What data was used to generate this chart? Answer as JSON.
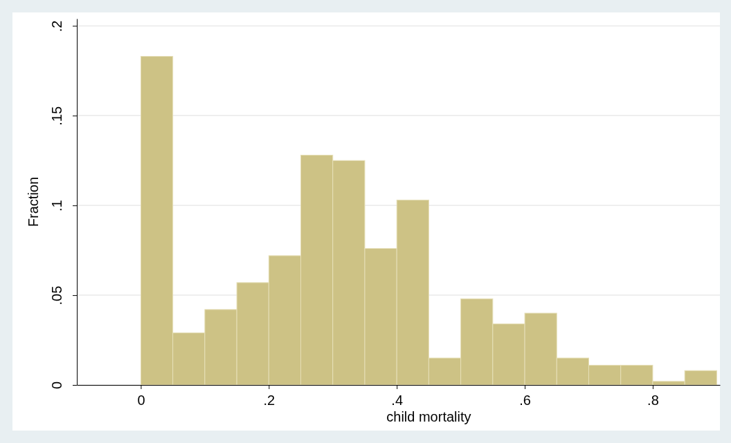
{
  "chart_data": {
    "type": "histogram",
    "xlabel": "child mortality",
    "ylabel": "Fraction",
    "bins": [
      0,
      0.05,
      0.1,
      0.15,
      0.2,
      0.25,
      0.3,
      0.35,
      0.4,
      0.45,
      0.5,
      0.55,
      0.6,
      0.65,
      0.7,
      0.75,
      0.8,
      0.85,
      0.9
    ],
    "values": [
      0.183,
      0.029,
      0.042,
      0.057,
      0.072,
      0.128,
      0.125,
      0.076,
      0.103,
      0.015,
      0.048,
      0.034,
      0.04,
      0.015,
      0.011,
      0.011,
      0.002,
      0.008
    ],
    "color": "#cdc285",
    "xlim": [
      -0.1,
      0.905
    ],
    "xticks": [
      {
        "value": 0,
        "label": "0"
      },
      {
        "value": 0.2,
        "label": ".2"
      },
      {
        "value": 0.4,
        "label": ".4"
      },
      {
        "value": 0.6,
        "label": ".6"
      },
      {
        "value": 0.8,
        "label": ".8"
      }
    ],
    "ylim": [
      0,
      0.204
    ],
    "yticks": [
      {
        "value": 0,
        "label": "0"
      },
      {
        "value": 0.05,
        "label": ".05"
      },
      {
        "value": 0.1,
        "label": ".1"
      },
      {
        "value": 0.15,
        "label": ".15"
      },
      {
        "value": 0.2,
        "label": ".2"
      }
    ],
    "grid": "y"
  }
}
